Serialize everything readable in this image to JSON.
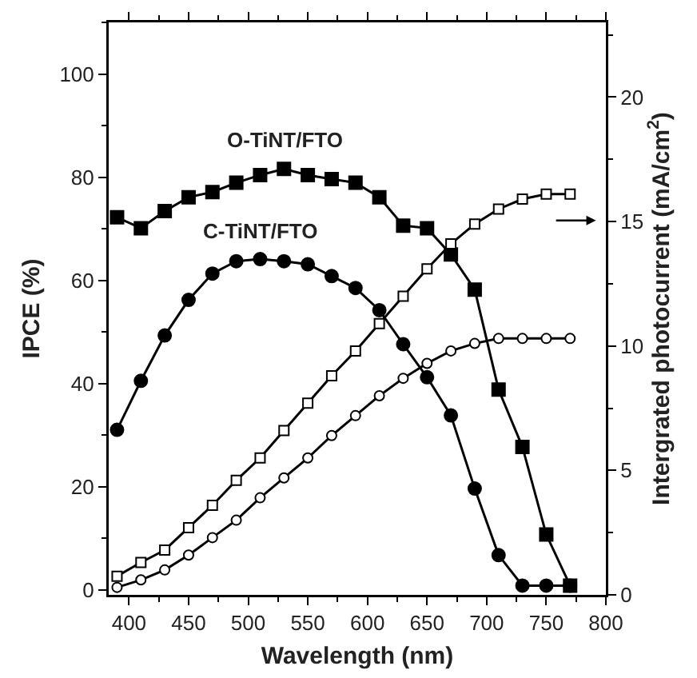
{
  "chart_data": {
    "type": "line",
    "xlabel": "Wavelength (nm)",
    "ylabel": "IPCE (%)",
    "y2label": "Intergrated photocurrent (mA/cm$^{2}$)",
    "x": [
      390,
      410,
      430,
      450,
      470,
      490,
      510,
      530,
      550,
      570,
      590,
      610,
      630,
      650,
      670,
      690,
      710,
      730,
      750,
      770
    ],
    "series": [
      {
        "name": "O-TiNT/FTO",
        "color": "#000000",
        "marker": "square",
        "values": [
          72.2,
          70.1,
          73.4,
          76.1,
          77.1,
          78.9,
          80.4,
          81.6,
          80.4,
          79.6,
          78.9,
          76.1,
          70.6,
          70.1,
          65.0,
          58.2,
          38.8,
          27.7,
          10.7,
          0.8
        ]
      },
      {
        "name": "C-TiNT/FTO",
        "color": "#000000",
        "marker": "circle",
        "values": [
          31.0,
          40.5,
          49.3,
          56.2,
          61.3,
          63.7,
          64.1,
          63.7,
          63.1,
          60.8,
          58.5,
          54.2,
          47.6,
          41.2,
          33.8,
          19.6,
          6.7,
          0.8,
          0.8,
          0.8
        ]
      },
      {
        "color": "#000000",
        "marker": "square",
        "axis": "y2",
        "values": [
          0.75,
          1.3,
          1.8,
          2.7,
          3.6,
          4.6,
          5.5,
          6.6,
          7.7,
          8.8,
          9.8,
          10.9,
          12.0,
          13.1,
          14.1,
          14.9,
          15.5,
          15.9,
          16.1,
          16.1
        ]
      },
      {
        "color": "#000000",
        "marker": "circle",
        "axis": "y2",
        "values": [
          0.3,
          0.6,
          1.0,
          1.6,
          2.3,
          3.0,
          3.9,
          4.7,
          5.5,
          6.4,
          7.2,
          8.0,
          8.7,
          9.3,
          9.8,
          10.1,
          10.3,
          10.3,
          10.3,
          10.3
        ]
      }
    ],
    "xlim": [
      383,
      800
    ],
    "xticks": [
      400,
      450,
      500,
      550,
      600,
      650,
      700,
      750,
      800
    ],
    "ylim": [
      -1,
      110
    ],
    "yticks": [
      0,
      20,
      40,
      60,
      80,
      100
    ],
    "y2lim": [
      0,
      23
    ],
    "y2ticks": [
      0,
      5,
      10,
      15,
      20
    ],
    "grid": false,
    "legend": false
  }
}
